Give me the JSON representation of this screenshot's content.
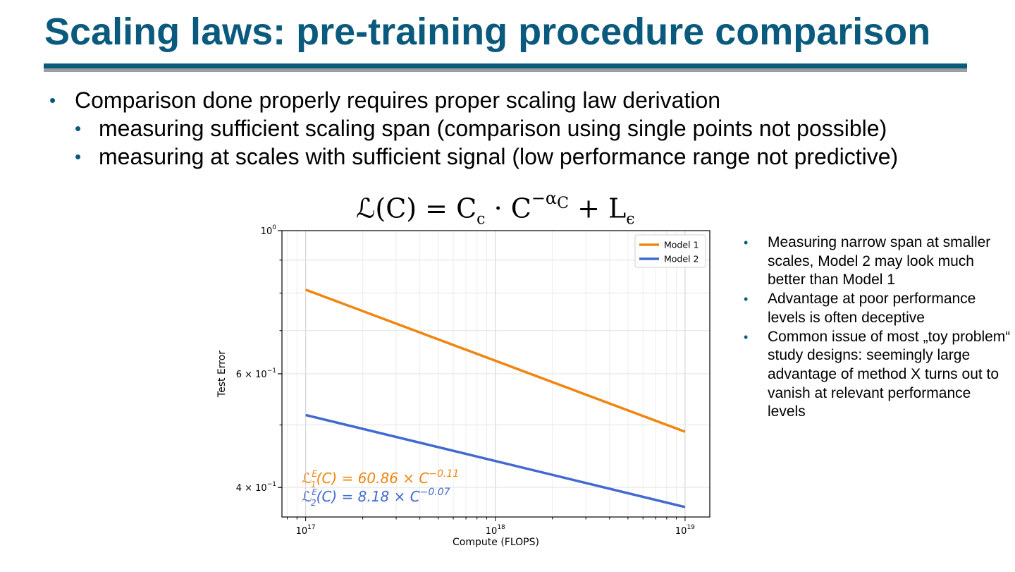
{
  "slide": {
    "title": "Scaling laws: pre-training procedure comparison",
    "bullets": [
      {
        "level": 1,
        "text": "Comparison done properly requires proper scaling law derivation"
      },
      {
        "level": 2,
        "text": "measuring sufficient scaling span (comparison using single points not possible)"
      },
      {
        "level": 2,
        "text": "measuring at scales with sufficient signal (low performance range not predictive)"
      }
    ],
    "formula": {
      "lhs": "ℒ(C) = C",
      "sub_c": "c",
      "mid": " · C",
      "exp": "−α",
      "exp_sub": "C",
      "plus": " + L",
      "sub_eps": "ϵ"
    },
    "side_bullets": [
      "Measuring narrow span at smaller scales, Model 2 may look much better than Model 1",
      "Advantage at poor performance levels is often deceptive",
      "Common issue of most „toy problem“ study designs: seemingly large advantage of method X turns out to vanish at relevant performance levels"
    ]
  },
  "chart_data": {
    "type": "line",
    "x_scale": "log",
    "y_scale": "log",
    "xlabel": "Compute (FLOPS)",
    "ylabel": "Test Error",
    "xlim": [
      7.5e+16,
      1.35e+19
    ],
    "ylim": [
      0.36,
      1.0
    ],
    "xticks": [
      {
        "value": 1e+17,
        "base": "10",
        "exp": "17"
      },
      {
        "value": 1e+18,
        "base": "10",
        "exp": "18"
      },
      {
        "value": 1e+19,
        "base": "10",
        "exp": "19"
      }
    ],
    "yticks": [
      {
        "value": 1.0,
        "base": "10",
        "exp": "0",
        "prefix": ""
      },
      {
        "value": 0.6,
        "base": "10",
        "exp": "−1",
        "prefix": "6 × "
      },
      {
        "value": 0.4,
        "base": "10",
        "exp": "−1",
        "prefix": "4 × "
      }
    ],
    "grid": true,
    "legend_position": "top-right",
    "series": [
      {
        "name": "Model 1",
        "color": "#f0850f",
        "coef": 60.86,
        "exponent": -0.11,
        "x": [
          1e+17,
          1e+19
        ],
        "y": [
          0.81,
          0.488
        ]
      },
      {
        "name": "Model 2",
        "color": "#4169d1",
        "coef": 8.18,
        "exponent": -0.07,
        "x": [
          1e+17,
          1e+19
        ],
        "y": [
          0.518,
          0.373
        ]
      }
    ],
    "annotations": [
      {
        "color": "#f0850f",
        "text_pre": "ℒ",
        "sup": "E",
        "sub": "1",
        "text_post": "(C) = 60.86 × C",
        "exp": "−0.11"
      },
      {
        "color": "#4169d1",
        "text_pre": "ℒ",
        "sup": "E",
        "sub": "2",
        "text_post": "(C) = 8.18 × C",
        "exp": "−0.07"
      }
    ]
  }
}
